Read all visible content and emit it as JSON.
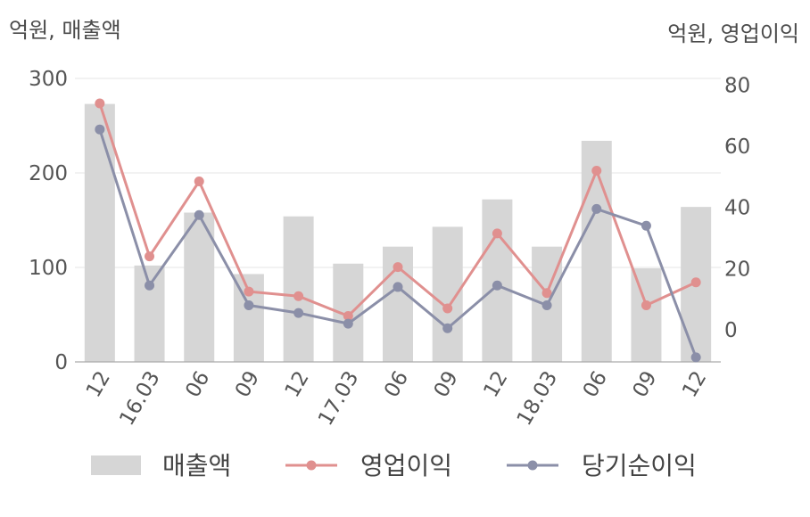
{
  "units": {
    "left": "억원, 매출액",
    "right": "억원, 영업이익"
  },
  "legend": [
    {
      "label": "매출액",
      "kind": "bar"
    },
    {
      "label": "영업이익",
      "kind": "line"
    },
    {
      "label": "당기순이익",
      "kind": "line"
    }
  ],
  "colors": {
    "bar": "#d6d6d6",
    "op": "#e0908f",
    "net": "#8b8fa8",
    "grid": "#e6e6e6",
    "axis": "#aaaaaa",
    "text": "#555555"
  },
  "chart_data": {
    "type": "bar",
    "categories": [
      "12",
      "16.03",
      "06",
      "09",
      "12",
      "17.03",
      "06",
      "09",
      "12",
      "18.03",
      "06",
      "09",
      "12"
    ],
    "y_left": {
      "ticks": [
        0,
        100,
        200,
        300
      ],
      "lim": [
        0,
        300
      ]
    },
    "y_right": {
      "ticks": [
        0,
        20,
        40,
        60,
        80
      ],
      "lim": [
        -10.5,
        81
      ]
    },
    "series": [
      {
        "name": "매출액",
        "type": "bar",
        "axis": "left",
        "values": [
          273,
          102,
          158,
          93,
          154,
          104,
          122,
          143,
          172,
          122,
          234,
          99,
          164
        ]
      },
      {
        "name": "영업이익",
        "type": "line",
        "axis": "right",
        "values": [
          74,
          24,
          48.5,
          12.5,
          11,
          4.5,
          20.5,
          7,
          31.5,
          12,
          52,
          8,
          15.5
        ]
      },
      {
        "name": "당기순이익",
        "type": "line",
        "axis": "right",
        "values": [
          65.5,
          14.5,
          37.5,
          8,
          5.5,
          2,
          14,
          0.5,
          14.5,
          8,
          39.5,
          34,
          -9
        ]
      }
    ]
  }
}
